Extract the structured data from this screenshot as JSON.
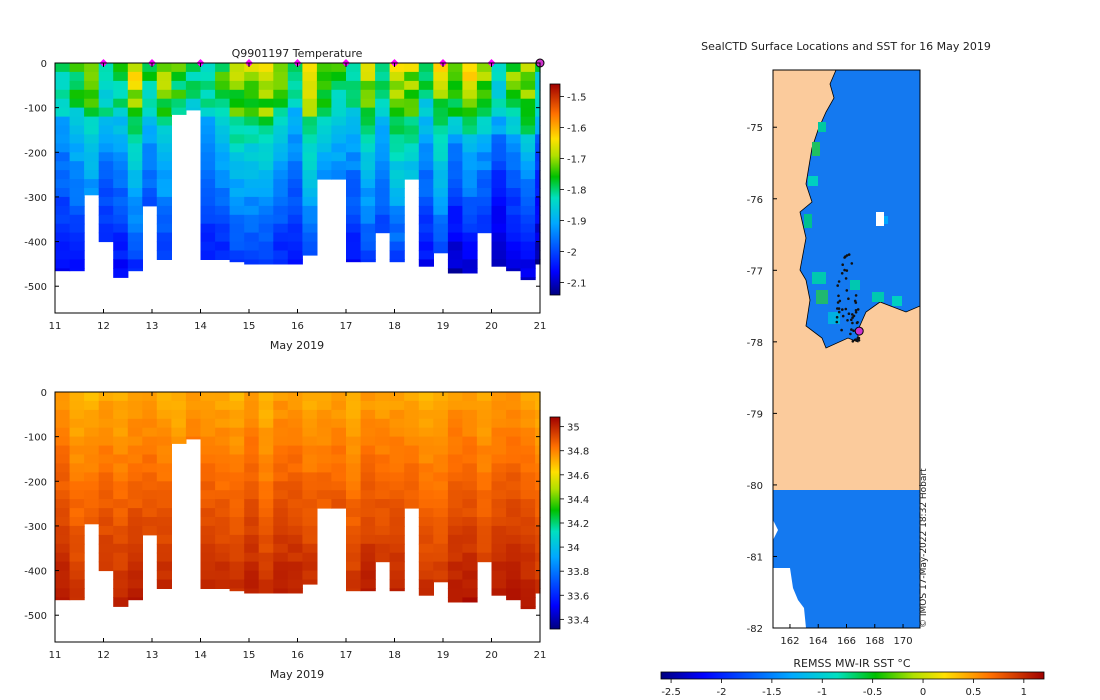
{
  "colors": {
    "land": "#fbcb9c",
    "sea_sst": "#1479f0",
    "marker_track": "#ff00ff",
    "marker_current": "#cc33cc",
    "text": "#222222"
  },
  "chart_data": [
    {
      "id": "temperature",
      "type": "heatmap",
      "title": "Q9901197  Temperature",
      "xlabel": "May 2019",
      "ylabel": "",
      "xlim": [
        11,
        21
      ],
      "ylim": [
        -560,
        0
      ],
      "xticks": [
        "11",
        "12",
        "13",
        "14",
        "15",
        "16",
        "17",
        "18",
        "19",
        "20",
        "21"
      ],
      "yticks": [
        "0",
        "-100",
        "-200",
        "-300",
        "-400",
        "-500"
      ],
      "colorbar": {
        "ticks": [
          "-1.5",
          "-1.6",
          "-1.7",
          "-1.8",
          "-1.9",
          "-2",
          "-2.1"
        ],
        "range": [
          -2.14,
          -1.46
        ]
      },
      "profile_times": [
        11.0,
        11.3,
        11.6,
        11.9,
        12.2,
        12.5,
        12.8,
        13.1,
        13.4,
        13.7,
        14.0,
        14.3,
        14.6,
        14.9,
        15.2,
        15.5,
        15.8,
        16.1,
        16.4,
        16.7,
        17.0,
        17.3,
        17.6,
        17.9,
        18.2,
        18.5,
        18.8,
        19.1,
        19.4,
        19.7,
        20.0,
        20.3,
        20.6,
        20.9
      ],
      "profile_max_depth": [
        -465,
        -465,
        -295,
        -400,
        -480,
        -465,
        -320,
        -440,
        -115,
        -105,
        -440,
        -440,
        -445,
        -450,
        -450,
        -450,
        -450,
        -430,
        -260,
        -260,
        -445,
        -445,
        -380,
        -445,
        -260,
        -455,
        -425,
        -470,
        -470,
        -380,
        -455,
        -465,
        -485,
        -450
      ],
      "surface_marker_days": [
        12,
        13,
        14,
        15,
        16,
        17,
        18,
        19,
        20
      ],
      "last_profile_day": 21
    },
    {
      "id": "salinity",
      "type": "heatmap",
      "title": "",
      "xlabel": "May 2019",
      "ylabel": "",
      "xlim": [
        11,
        21
      ],
      "ylim": [
        -560,
        0
      ],
      "xticks": [
        "11",
        "12",
        "13",
        "14",
        "15",
        "16",
        "17",
        "18",
        "19",
        "20",
        "21"
      ],
      "yticks": [
        "0",
        "-100",
        "-200",
        "-300",
        "-400",
        "-500"
      ],
      "colorbar": {
        "ticks": [
          "35",
          "34.8",
          "34.6",
          "34.4",
          "34.2",
          "34",
          "33.8",
          "33.6",
          "33.4"
        ],
        "range": [
          33.32,
          35.08
        ]
      }
    },
    {
      "id": "map",
      "type": "heatmap",
      "title": "SealCTD Surface Locations and SST for 16 May 2019",
      "xlabel": "",
      "ylabel": "",
      "xlim": [
        160.8,
        171.2
      ],
      "ylim": [
        -82,
        -74.2
      ],
      "xticks": [
        "162",
        "164",
        "166",
        "168",
        "170"
      ],
      "yticks": [
        "-75",
        "-76",
        "-77",
        "-78",
        "-79",
        "-80",
        "-81",
        "-82"
      ],
      "colorbar": {
        "label": "REMSS MW-IR SST °C",
        "ticks": [
          "-2.5",
          "-2",
          "-1.5",
          "-1",
          "-0.5",
          "0",
          "0.5",
          "1"
        ],
        "range": [
          -2.6,
          1.2
        ]
      },
      "current_position": {
        "lon": 166.9,
        "lat": -77.85
      },
      "credit": "© IMOS 17-May-2022 18:32 Hobart"
    }
  ]
}
